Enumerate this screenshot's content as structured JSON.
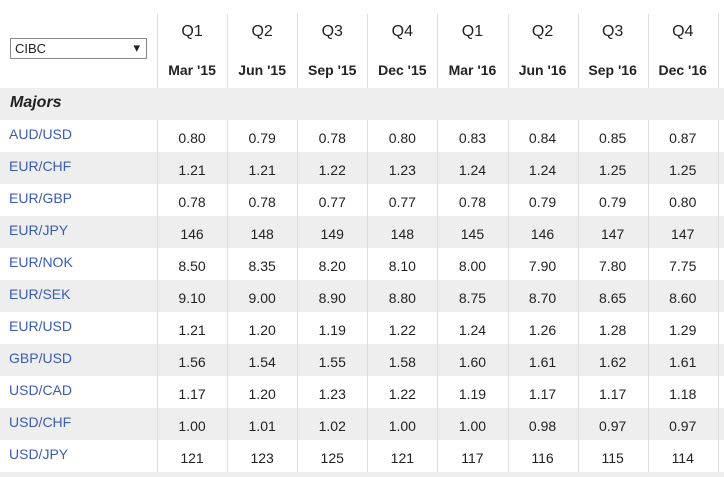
{
  "header": {
    "select": "CIBC",
    "quarters": [
      "Q1",
      "Q2",
      "Q3",
      "Q4",
      "Q1",
      "Q2",
      "Q3",
      "Q4"
    ],
    "dates": [
      "Mar '15",
      "Jun '15",
      "Sep '15",
      "Dec '15",
      "Mar '16",
      "Jun '16",
      "Sep '16",
      "Dec '16"
    ]
  },
  "table": {
    "section": "Majors",
    "rows": [
      [
        "AUD/USD",
        "0.80",
        "0.79",
        "0.78",
        "0.80",
        "0.83",
        "0.84",
        "0.85",
        "0.87"
      ],
      [
        "EUR/CHF",
        "1.21",
        "1.21",
        "1.22",
        "1.23",
        "1.24",
        "1.24",
        "1.25",
        "1.25"
      ],
      [
        "EUR/GBP",
        "0.78",
        "0.78",
        "0.77",
        "0.77",
        "0.78",
        "0.79",
        "0.79",
        "0.80"
      ],
      [
        "EUR/JPY",
        "146",
        "148",
        "149",
        "148",
        "145",
        "146",
        "147",
        "147"
      ],
      [
        "EUR/NOK",
        "8.50",
        "8.35",
        "8.20",
        "8.10",
        "8.00",
        "7.90",
        "7.80",
        "7.75"
      ],
      [
        "EUR/SEK",
        "9.10",
        "9.00",
        "8.90",
        "8.80",
        "8.75",
        "8.70",
        "8.65",
        "8.60"
      ],
      [
        "EUR/USD",
        "1.21",
        "1.20",
        "1.19",
        "1.22",
        "1.24",
        "1.26",
        "1.28",
        "1.29"
      ],
      [
        "GBP/USD",
        "1.56",
        "1.54",
        "1.55",
        "1.58",
        "1.60",
        "1.61",
        "1.62",
        "1.61"
      ],
      [
        "USD/CAD",
        "1.17",
        "1.20",
        "1.23",
        "1.22",
        "1.19",
        "1.17",
        "1.17",
        "1.18"
      ],
      [
        "USD/CHF",
        "1.00",
        "1.01",
        "1.02",
        "1.00",
        "1.00",
        "0.98",
        "0.97",
        "0.97"
      ],
      [
        "USD/JPY",
        "121",
        "123",
        "125",
        "121",
        "117",
        "116",
        "115",
        "114"
      ]
    ]
  }
}
